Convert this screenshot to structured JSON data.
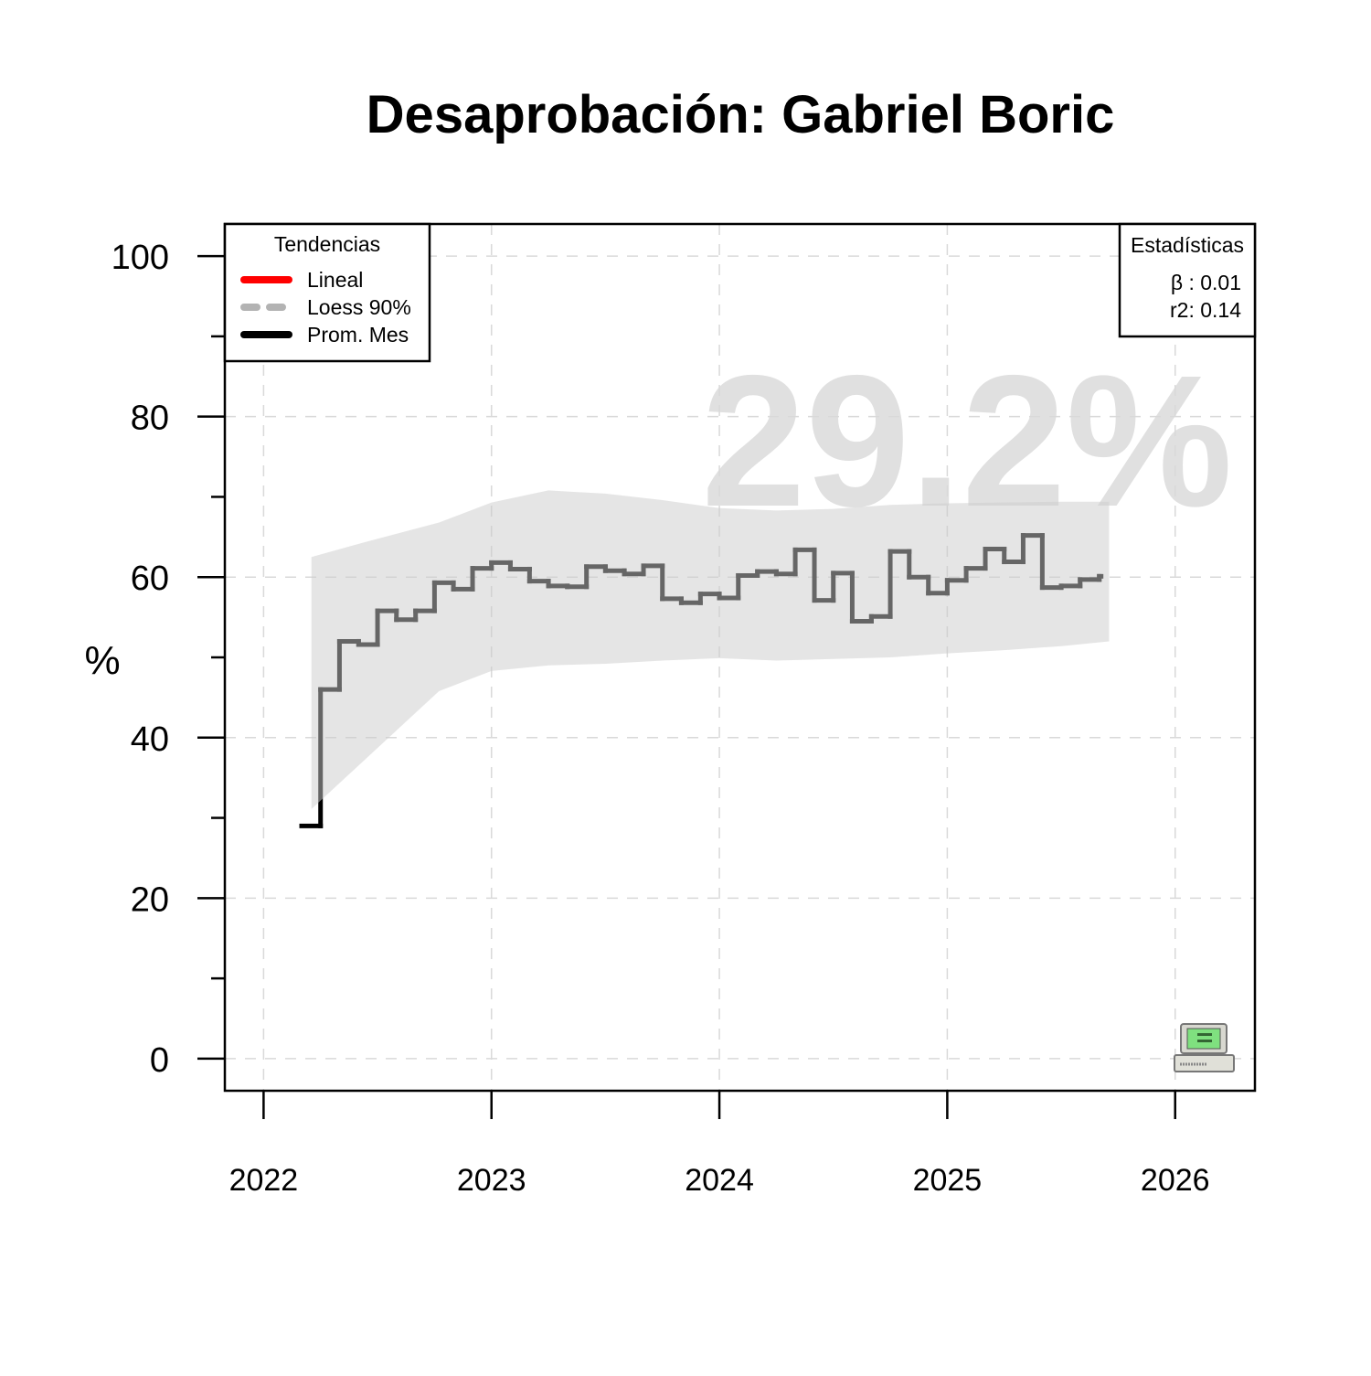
{
  "chart_data": {
    "type": "line",
    "title": "Desaprobación: Gabriel Boric",
    "ylabel": "%",
    "annotation": "29.2%",
    "xlim": [
      2021.83,
      2026.35
    ],
    "xticks": [
      2022,
      2023,
      2024,
      2025,
      2026
    ],
    "ylim": [
      -4,
      104
    ],
    "yticks": [
      0,
      20,
      40,
      60,
      80,
      100
    ],
    "yminor_ticks": [
      10,
      30,
      50,
      70,
      90
    ],
    "grid": true,
    "step": true,
    "x": [
      2022.167,
      2022.25,
      2022.333,
      2022.417,
      2022.5,
      2022.583,
      2022.667,
      2022.75,
      2022.833,
      2022.917,
      2023.0,
      2023.083,
      2023.167,
      2023.25,
      2023.333,
      2023.417,
      2023.5,
      2023.583,
      2023.667,
      2023.75,
      2023.833,
      2023.917,
      2024.0,
      2024.083,
      2024.167,
      2024.25,
      2024.333,
      2024.417,
      2024.5,
      2024.583,
      2024.667,
      2024.75,
      2024.833,
      2024.917,
      2025.0,
      2025.083,
      2025.167,
      2025.25,
      2025.333,
      2025.417,
      2025.5,
      2025.583,
      2025.667
    ],
    "series": [
      {
        "name": "Prom. Mes",
        "color": "#000000",
        "values": [
          29,
          46,
          52,
          51.6,
          55.8,
          54.7,
          55.8,
          59.3,
          58.5,
          61.1,
          61.8,
          61,
          59.5,
          58.9,
          58.8,
          61.3,
          60.8,
          60.4,
          61.4,
          57.3,
          56.8,
          57.9,
          57.4,
          60.2,
          60.7,
          60.4,
          63.4,
          57.1,
          60.5,
          54.5,
          55.1,
          63.2,
          60,
          58,
          59.6,
          61.1,
          63.5,
          61.9,
          65.2,
          58.7,
          58.9,
          59.7,
          60.1
        ]
      }
    ],
    "band": {
      "name": "Loess 90%",
      "color": "#b3b3b3",
      "x": [
        2022.21,
        2022.45,
        2022.77,
        2023.0,
        2023.25,
        2023.5,
        2023.75,
        2024.0,
        2024.25,
        2024.5,
        2024.75,
        2025.0,
        2025.25,
        2025.5,
        2025.71
      ],
      "lower": [
        31.1,
        37.4,
        45.8,
        48.3,
        49.0,
        49.2,
        49.6,
        49.9,
        49.6,
        49.8,
        50.0,
        50.5,
        50.9,
        51.4,
        52.0
      ],
      "upper": [
        62.5,
        64.4,
        66.8,
        69.3,
        70.8,
        70.4,
        69.6,
        68.6,
        68.3,
        68.5,
        69.0,
        69.2,
        69.3,
        69.4,
        69.4
      ]
    },
    "legend": {
      "title": "Tendencias",
      "position": "top-left",
      "extra_entries": [
        {
          "name": "Lineal",
          "color": "#ff0000"
        }
      ]
    },
    "stats": {
      "title": "Estadísticas",
      "lines": [
        "β : 0.01",
        "r2: 0.14"
      ],
      "position": "top-right"
    }
  }
}
